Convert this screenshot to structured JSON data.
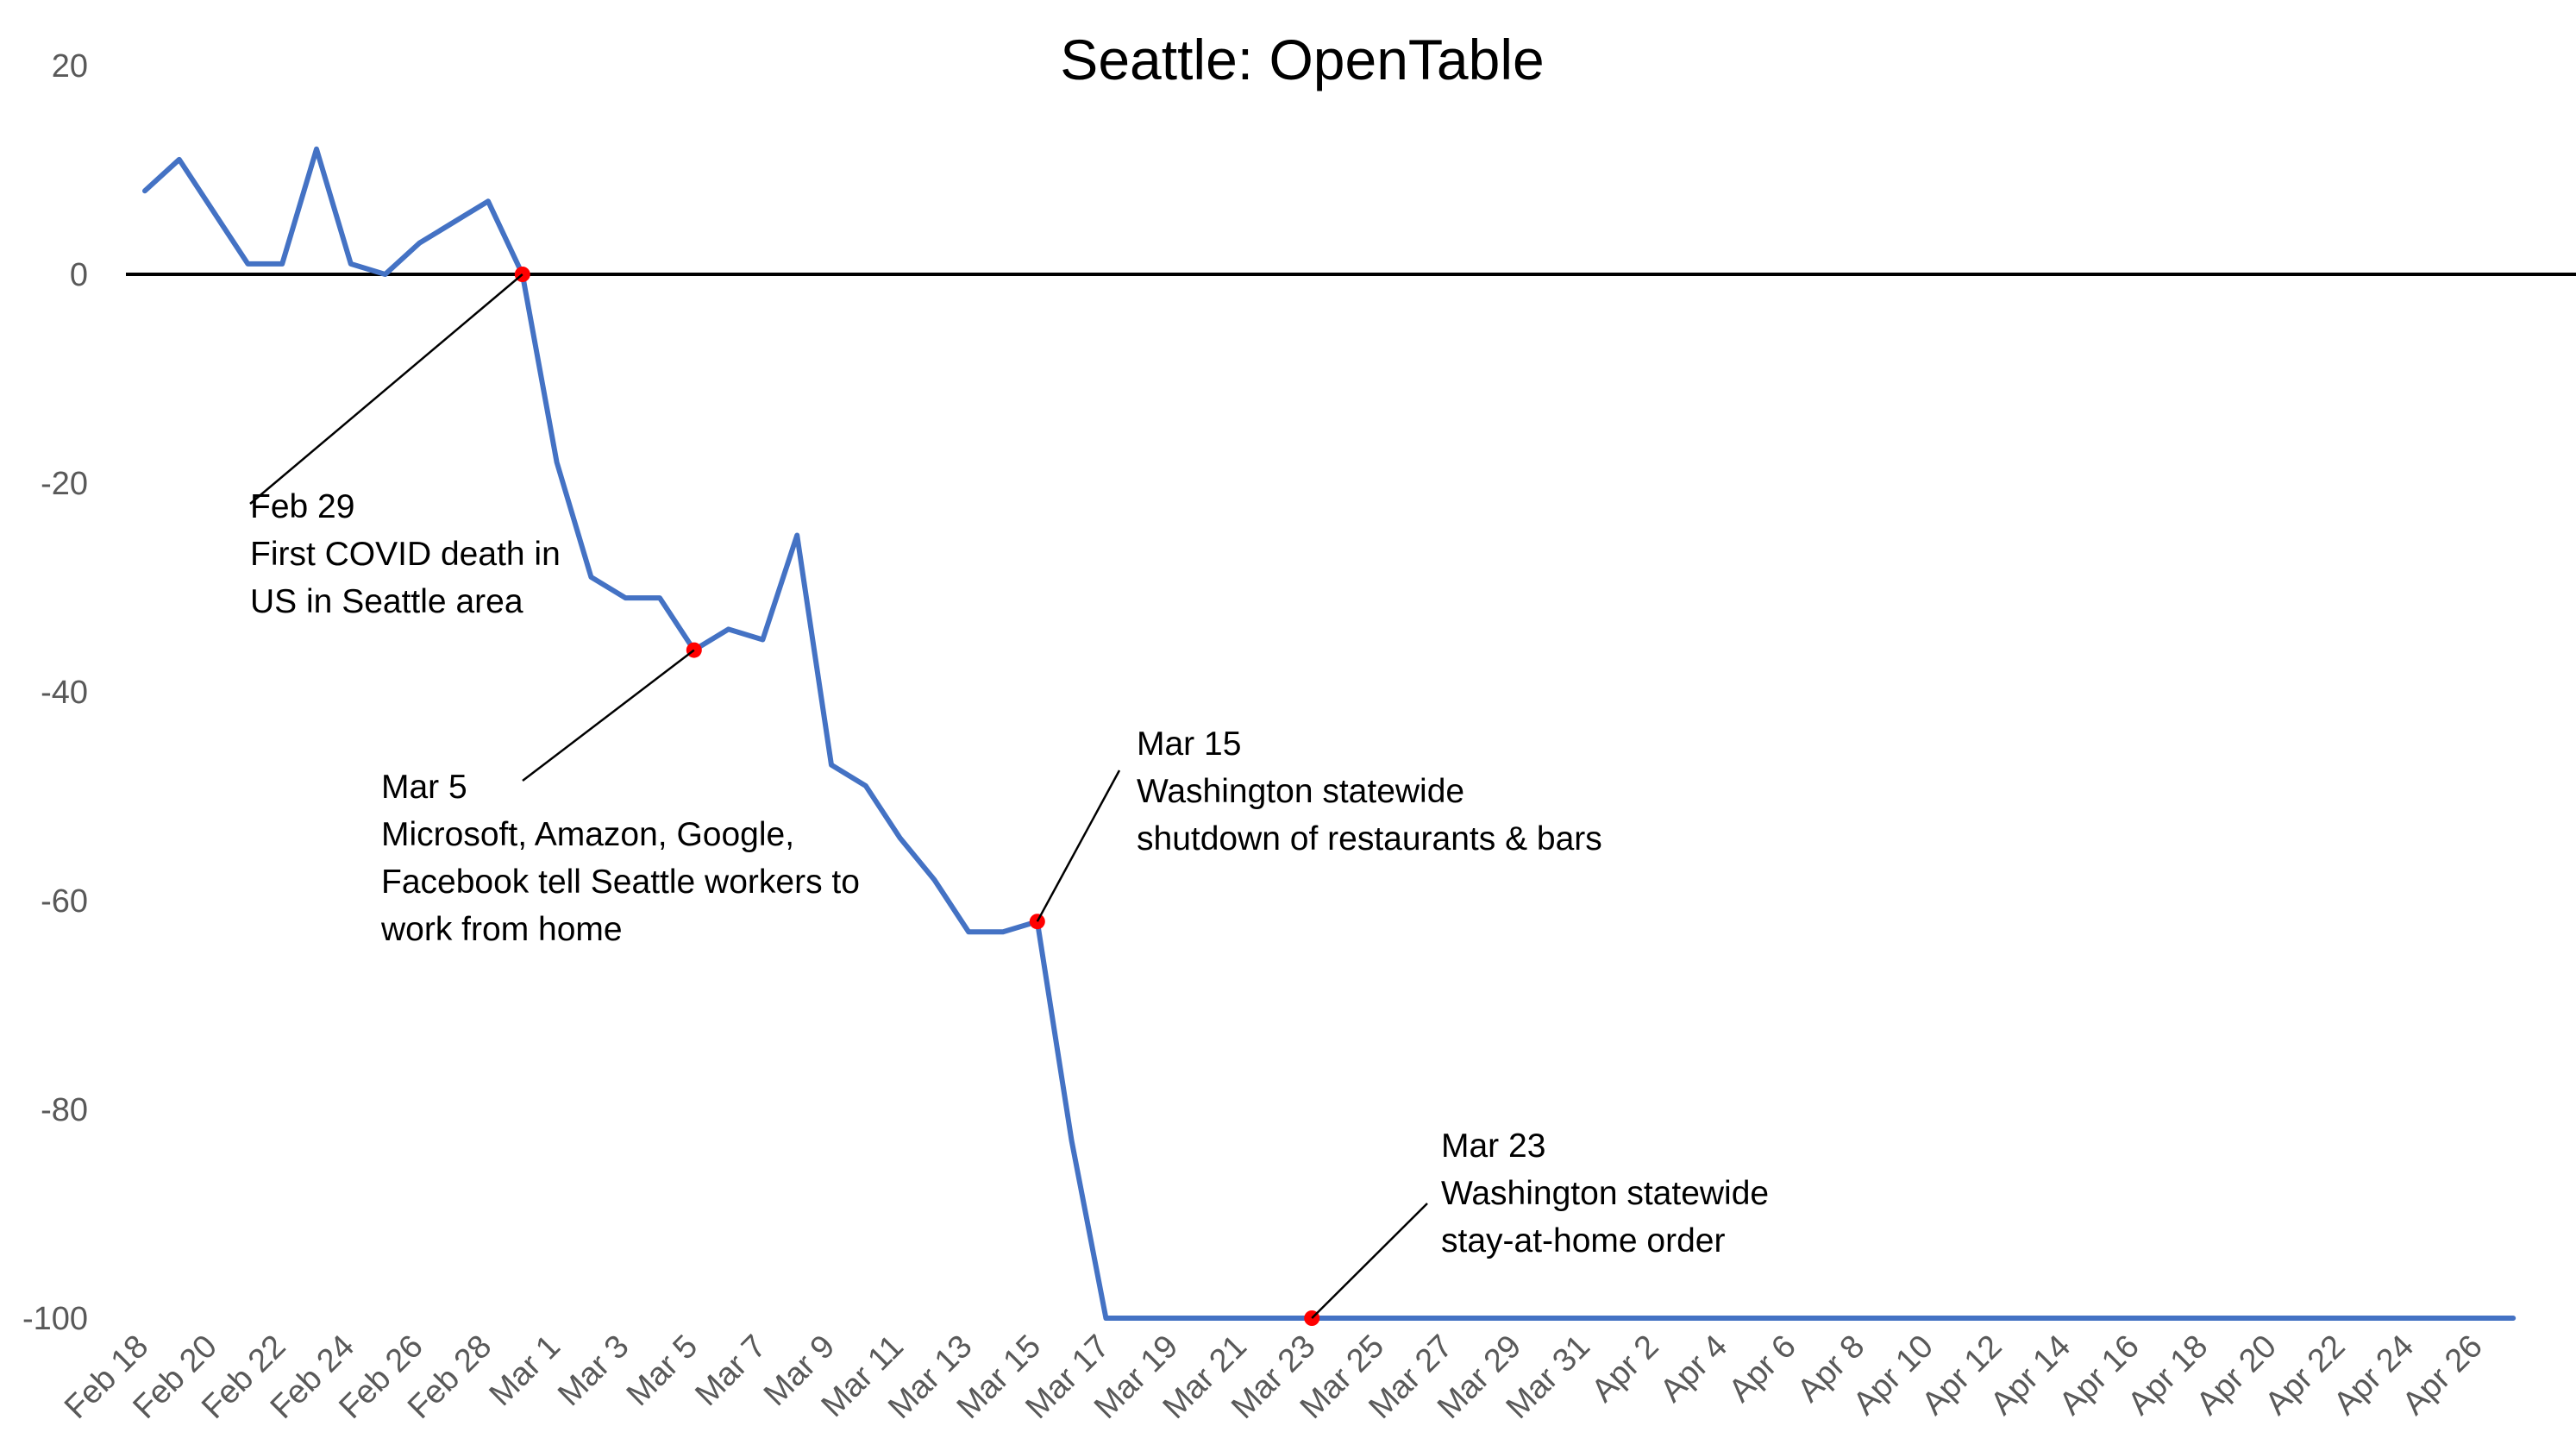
{
  "chart_data": {
    "type": "line",
    "title": "Seattle: OpenTable",
    "xlabel": "",
    "ylabel": "",
    "ylim": [
      -100,
      20
    ],
    "yticks": [
      20,
      0,
      -20,
      -40,
      -60,
      -80,
      -100
    ],
    "grid": false,
    "legend": "none",
    "line_color": "#4472C4",
    "marker_color": "#FF0000",
    "x": [
      "Feb 18",
      "Feb 19",
      "Feb 20",
      "Feb 21",
      "Feb 22",
      "Feb 23",
      "Feb 24",
      "Feb 25",
      "Feb 26",
      "Feb 27",
      "Feb 28",
      "Feb 29",
      "Mar 1",
      "Mar 2",
      "Mar 3",
      "Mar 4",
      "Mar 5",
      "Mar 6",
      "Mar 7",
      "Mar 8",
      "Mar 9",
      "Mar 10",
      "Mar 11",
      "Mar 12",
      "Mar 13",
      "Mar 14",
      "Mar 15",
      "Mar 16",
      "Mar 17",
      "Mar 18",
      "Mar 19",
      "Mar 20",
      "Mar 21",
      "Mar 22",
      "Mar 23",
      "Mar 24",
      "Mar 25",
      "Mar 26",
      "Mar 27",
      "Mar 28",
      "Mar 29",
      "Mar 30",
      "Mar 31",
      "Apr 1",
      "Apr 2",
      "Apr 3",
      "Apr 4",
      "Apr 5",
      "Apr 6",
      "Apr 7",
      "Apr 8",
      "Apr 9",
      "Apr 10",
      "Apr 11",
      "Apr 12",
      "Apr 13",
      "Apr 14",
      "Apr 15",
      "Apr 16",
      "Apr 17",
      "Apr 18",
      "Apr 19",
      "Apr 20",
      "Apr 21",
      "Apr 22",
      "Apr 23",
      "Apr 24",
      "Apr 25",
      "Apr 26",
      "Apr 27"
    ],
    "xtick_labels": [
      "Feb 18",
      "Feb 20",
      "Feb 22",
      "Feb 24",
      "Feb 26",
      "Feb 28",
      "Mar 1",
      "Mar 3",
      "Mar 5",
      "Mar 7",
      "Mar 9",
      "Mar 11",
      "Mar 13",
      "Mar 15",
      "Mar 17",
      "Mar 19",
      "Mar 21",
      "Mar 23",
      "Mar 25",
      "Mar 27",
      "Mar 29",
      "Mar 31",
      "Apr 2",
      "Apr 4",
      "Apr 6",
      "Apr 8",
      "Apr 10",
      "Apr 12",
      "Apr 14",
      "Apr 16",
      "Apr 18",
      "Apr 20",
      "Apr 22",
      "Apr 24",
      "Apr 26"
    ],
    "series": [
      {
        "values": [
          8,
          11,
          6,
          1,
          1,
          12,
          1,
          0,
          3,
          5,
          7,
          0,
          -18,
          -29,
          -31,
          -31,
          -36,
          -34,
          -35,
          -25,
          -47,
          -49,
          -54,
          -58,
          -63,
          -63,
          -62,
          -83,
          -100,
          -100,
          -100,
          -100,
          -100,
          -100,
          -100,
          -100,
          -100,
          -100,
          -100,
          -100,
          -100,
          -100,
          -100,
          -100,
          -100,
          -100,
          -100,
          -100,
          -100,
          -100,
          -100,
          -100,
          -100,
          -100,
          -100,
          -100,
          -100,
          -100,
          -100,
          -100,
          -100,
          -100,
          -100,
          -100,
          -100,
          -100,
          -100,
          -100,
          -100,
          -100
        ]
      }
    ],
    "annotations": [
      {
        "point": "Feb 29",
        "value": 0,
        "lines": [
          "Feb 29",
          "First COVID death in",
          "US in Seattle area"
        ]
      },
      {
        "point": "Mar 5",
        "value": -36,
        "lines": [
          "Mar 5",
          "Microsoft, Amazon, Google,",
          "Facebook tell Seattle workers to",
          "work from home"
        ]
      },
      {
        "point": "Mar 15",
        "value": -62,
        "lines": [
          "Mar 15",
          "Washington statewide",
          "shutdown of restaurants & bars"
        ]
      },
      {
        "point": "Mar 23",
        "value": -100,
        "lines": [
          "Mar 23",
          "Washington statewide",
          "stay-at-home order"
        ]
      }
    ]
  }
}
